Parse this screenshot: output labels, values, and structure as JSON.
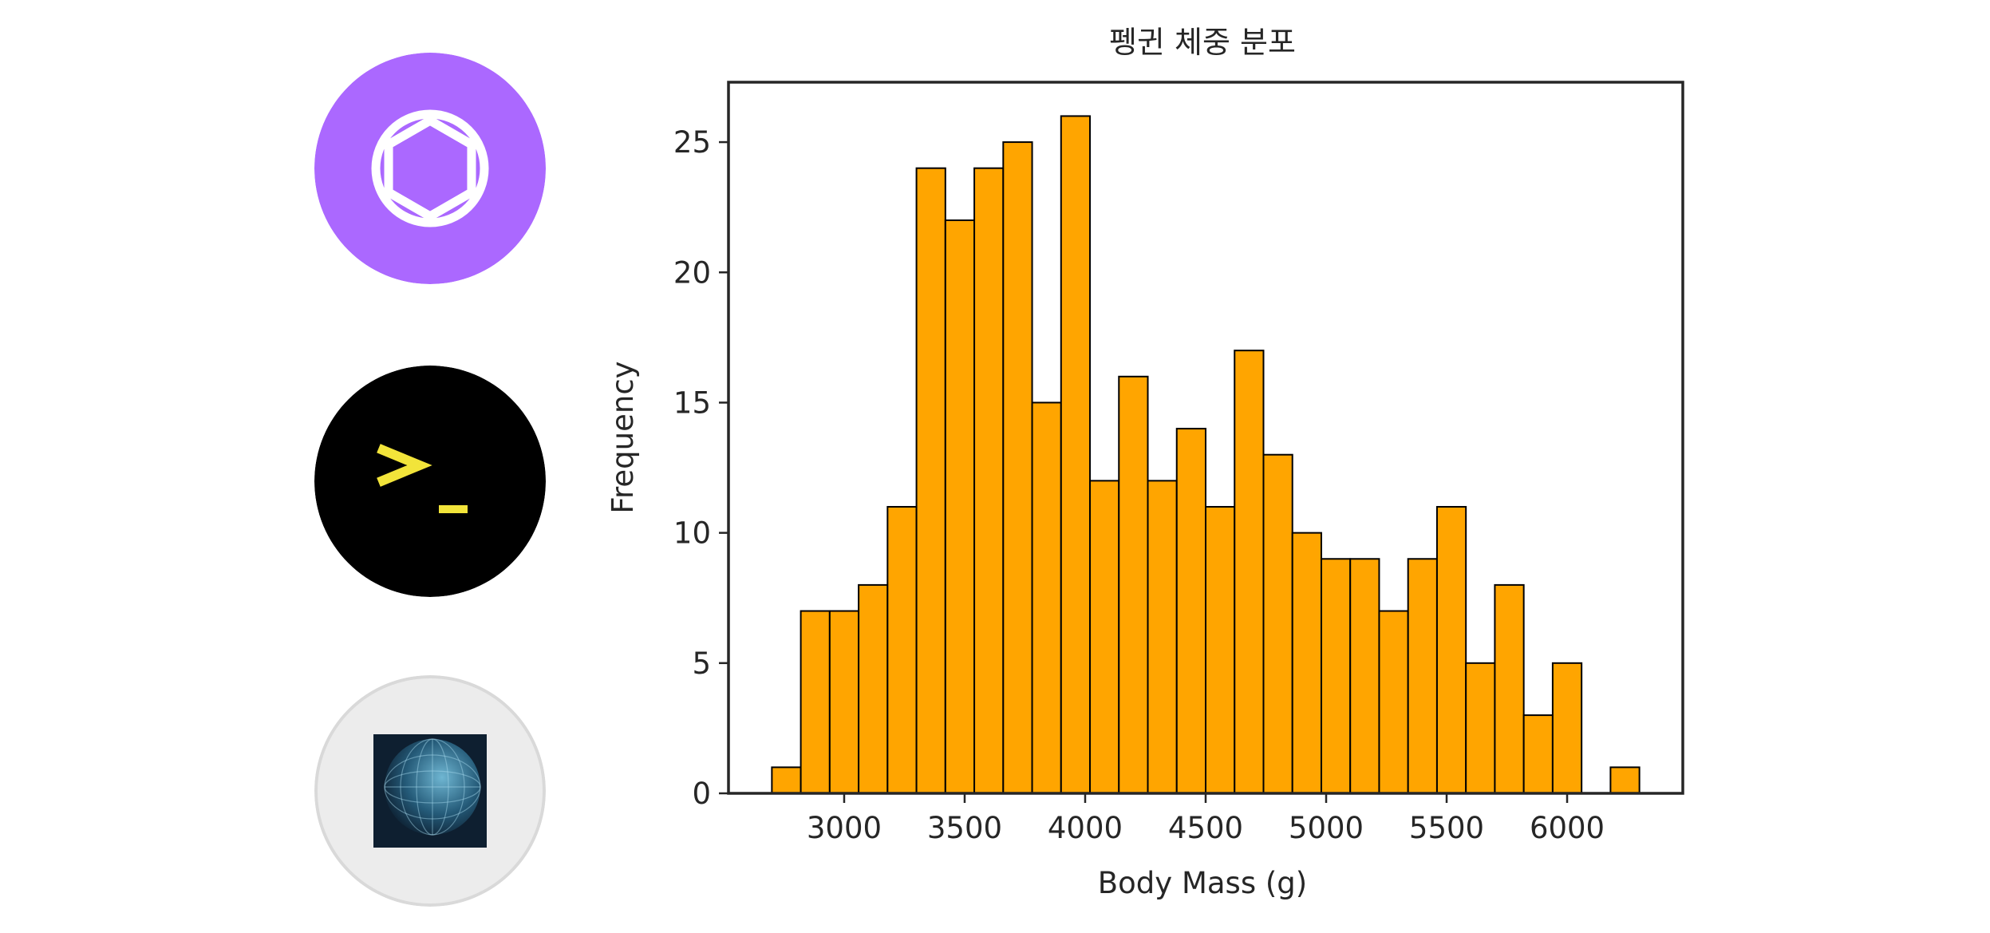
{
  "avatars": [
    {
      "icon": "openai-logo-icon",
      "background": "#ab68ff",
      "stroke": "#ffffff"
    },
    {
      "icon": "terminal-prompt-icon",
      "background": "#000000",
      "glyph": ">_",
      "glyph_color": "#f2e43a"
    },
    {
      "icon": "globe-network-icon",
      "background": "#ececec",
      "border": "#d9d9d9"
    }
  ],
  "chart_data": {
    "type": "bar",
    "title": "펭귄 체중 분포",
    "xlabel": "Body Mass (g)",
    "ylabel": "Frequency",
    "bar_color": "#ffa500",
    "edge_color": "#000000",
    "bin_width": 120,
    "xlim": [
      2520,
      6480
    ],
    "ylim": [
      0,
      27.3
    ],
    "xticks": [
      3000,
      3500,
      4000,
      4500,
      5000,
      5500,
      6000
    ],
    "yticks": [
      0,
      5,
      10,
      15,
      20,
      25
    ],
    "grid": false,
    "bins": [
      {
        "x0": 2700,
        "x1": 2820,
        "count": 1
      },
      {
        "x0": 2820,
        "x1": 2940,
        "count": 7
      },
      {
        "x0": 2940,
        "x1": 3060,
        "count": 7
      },
      {
        "x0": 3060,
        "x1": 3180,
        "count": 8
      },
      {
        "x0": 3180,
        "x1": 3300,
        "count": 11
      },
      {
        "x0": 3300,
        "x1": 3420,
        "count": 24
      },
      {
        "x0": 3420,
        "x1": 3540,
        "count": 22
      },
      {
        "x0": 3540,
        "x1": 3660,
        "count": 24
      },
      {
        "x0": 3660,
        "x1": 3780,
        "count": 25
      },
      {
        "x0": 3780,
        "x1": 3900,
        "count": 15
      },
      {
        "x0": 3900,
        "x1": 4020,
        "count": 26
      },
      {
        "x0": 4020,
        "x1": 4140,
        "count": 12
      },
      {
        "x0": 4140,
        "x1": 4260,
        "count": 16
      },
      {
        "x0": 4260,
        "x1": 4380,
        "count": 12
      },
      {
        "x0": 4380,
        "x1": 4500,
        "count": 14
      },
      {
        "x0": 4500,
        "x1": 4620,
        "count": 11
      },
      {
        "x0": 4620,
        "x1": 4740,
        "count": 17
      },
      {
        "x0": 4740,
        "x1": 4860,
        "count": 13
      },
      {
        "x0": 4860,
        "x1": 4980,
        "count": 10
      },
      {
        "x0": 4980,
        "x1": 5100,
        "count": 9
      },
      {
        "x0": 5100,
        "x1": 5220,
        "count": 9
      },
      {
        "x0": 5220,
        "x1": 5340,
        "count": 7
      },
      {
        "x0": 5340,
        "x1": 5460,
        "count": 9
      },
      {
        "x0": 5460,
        "x1": 5580,
        "count": 11
      },
      {
        "x0": 5580,
        "x1": 5700,
        "count": 5
      },
      {
        "x0": 5700,
        "x1": 5820,
        "count": 8
      },
      {
        "x0": 5820,
        "x1": 5940,
        "count": 3
      },
      {
        "x0": 5940,
        "x1": 6060,
        "count": 5
      },
      {
        "x0": 6060,
        "x1": 6180,
        "count": 0
      },
      {
        "x0": 6180,
        "x1": 6300,
        "count": 1
      }
    ]
  }
}
